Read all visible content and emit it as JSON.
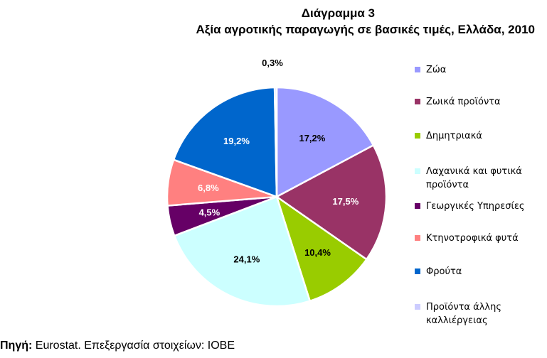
{
  "chart_data": {
    "type": "pie",
    "title": "Διάγραμμα 3",
    "subtitle": "Αξία αγροτικής παραγωγής σε βασικές τιμές, Ελλάδα, 2010",
    "categories": [
      "Ζώα",
      "Ζωικά προϊόντα",
      "Δημητριακά",
      "Λαχανικά και φυτικά προϊόντα",
      "Γεωργικές Υπηρεσίες",
      "Κτηνοτροφικά φυτά",
      "Φρούτα",
      "Προϊόντα άλλης καλλιέργειας"
    ],
    "values": [
      17.2,
      17.5,
      10.4,
      24.1,
      4.5,
      6.8,
      19.2,
      0.3
    ],
    "value_labels": [
      "17,2%",
      "17,5%",
      "10,4%",
      "24,1%",
      "4,5%",
      "6,8%",
      "19,2%",
      "0,3%"
    ],
    "colors": [
      "#9999ff",
      "#993366",
      "#99cc00",
      "#ccffff",
      "#660066",
      "#ff8080",
      "#0066cc",
      "#ccccff"
    ],
    "legend_position": "right"
  },
  "legend": [
    {
      "label": "Ζώα",
      "color": "#9999ff"
    },
    {
      "label": "Ζωικά προϊόντα",
      "color": "#993366"
    },
    {
      "label": "Δημητριακά",
      "color": "#99cc00"
    },
    {
      "label": "Λαχανικά και φυτικά προϊόντα",
      "color": "#ccffff"
    },
    {
      "label": "Γεωργικές Υπηρεσίες",
      "color": "#660066"
    },
    {
      "label": "Κτηνοτροφικά φυτά",
      "color": "#ff8080"
    },
    {
      "label": "Φρούτα",
      "color": "#0066cc"
    },
    {
      "label": "Προϊόντα άλλης καλλιέργειας",
      "color": "#ccccff"
    }
  ],
  "source": {
    "prefix": "Πηγή:",
    "text": " Eurostat. Επεξεργασία στοιχείων: ΙΟΒΕ"
  }
}
